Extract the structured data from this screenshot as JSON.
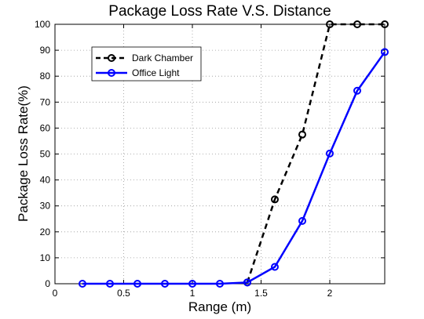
{
  "chart_data": {
    "type": "line",
    "title": "Package Loss Rate V.S. Distance",
    "xlabel": "Range (m)",
    "ylabel": "Package Loss Rate(%)",
    "xlim": [
      0,
      2.4
    ],
    "ylim": [
      0,
      100
    ],
    "xticks": [
      0,
      0.5,
      1,
      1.5,
      2
    ],
    "xtick_labels": [
      "0",
      "0.5",
      "1",
      "1.5",
      "2"
    ],
    "yticks": [
      0,
      10,
      20,
      30,
      40,
      50,
      60,
      70,
      80,
      90,
      100
    ],
    "ytick_labels": [
      "0",
      "10",
      "20",
      "30",
      "40",
      "50",
      "60",
      "70",
      "80",
      "90",
      "100"
    ],
    "grid": true,
    "legend_position": "top-left",
    "series": [
      {
        "name": "Dark Chamber",
        "color": "#000000",
        "line_style": "dashed",
        "marker": "circle",
        "x": [
          1.4,
          1.6,
          1.8,
          2.0,
          2.2,
          2.4
        ],
        "y": [
          0.5,
          32.5,
          57.5,
          100,
          100,
          100
        ]
      },
      {
        "name": "Office Light",
        "color": "#0000ff",
        "line_style": "solid",
        "marker": "circle",
        "x": [
          0.2,
          0.4,
          0.6,
          0.8,
          1.0,
          1.2,
          1.4,
          1.6,
          1.8,
          2.0,
          2.2,
          2.4
        ],
        "y": [
          0,
          0,
          0,
          0,
          0,
          0,
          0.5,
          6.5,
          24.2,
          50.2,
          74.4,
          89.3
        ]
      }
    ]
  }
}
